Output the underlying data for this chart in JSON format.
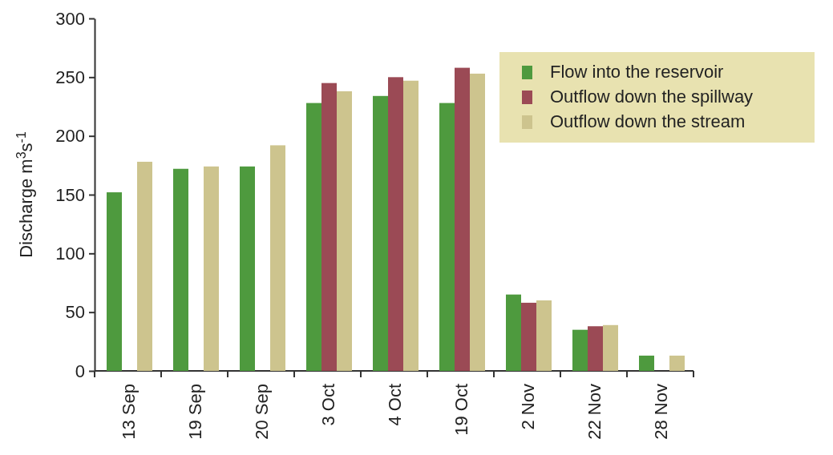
{
  "chart_data": {
    "type": "bar",
    "ylabel": "Discharge m$^{3}$s$^{-1}$",
    "categories": [
      "13 Sep",
      "19 Sep",
      "20 Sep",
      "3 Oct",
      "4 Oct",
      "19 Oct",
      "2 Nov",
      "22 Nov",
      "28 Nov"
    ],
    "series": [
      {
        "name": "Flow into the reservoir",
        "color": "#4e9a3e",
        "values": [
          152,
          172,
          174,
          228,
          234,
          228,
          65,
          35,
          13
        ]
      },
      {
        "name": "Outflow down the spillway",
        "color": "#9b4a55",
        "values": [
          null,
          null,
          null,
          245,
          250,
          258,
          58,
          38,
          null
        ]
      },
      {
        "name": "Outflow down the stream",
        "color": "#cdc48e",
        "values": [
          178,
          174,
          192,
          238,
          247,
          253,
          60,
          39,
          13
        ]
      }
    ],
    "ylim": [
      0,
      300
    ],
    "yticks": [
      0,
      50,
      100,
      150,
      200,
      250,
      300
    ],
    "grid": false,
    "legend": "top right"
  }
}
